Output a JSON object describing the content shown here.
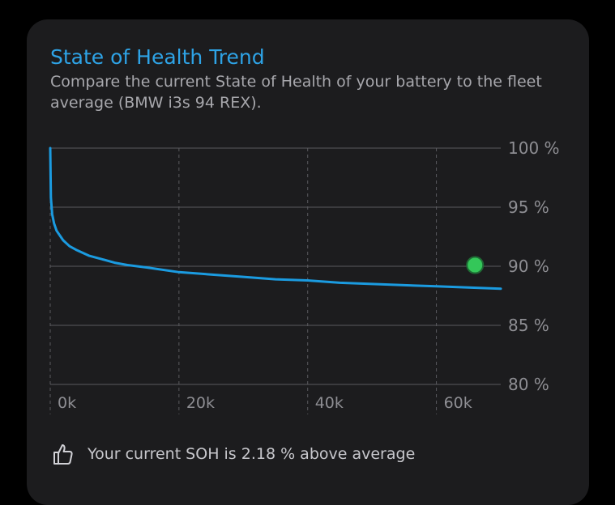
{
  "card": {
    "title": "State of Health Trend",
    "subtitle": "Compare the current State of Health of your battery to the fleet average (BMW i3s 94 REX).",
    "footer_icon": "thumbs-up-icon",
    "footer_text": "Your current SOH is 2.18 % above average"
  },
  "colors": {
    "background": "#000000",
    "card": "#1c1c1e",
    "title": "#2ea3e6",
    "line": "#1b9be0",
    "marker": "#34c759",
    "grid": "#5a5a5e",
    "tick": "#8e8e93"
  },
  "chart_data": {
    "type": "line",
    "title": "",
    "xlabel": "",
    "ylabel": "",
    "xlim": [
      0,
      70000
    ],
    "ylim": [
      80,
      100
    ],
    "x_ticks": [
      0,
      20000,
      40000,
      60000
    ],
    "x_tick_labels": [
      "0k",
      "20k",
      "40k",
      "60k"
    ],
    "y_ticks": [
      100,
      95,
      90,
      85,
      80
    ],
    "y_tick_labels": [
      "100 %",
      "95 %",
      "90 %",
      "85 %",
      "80 %"
    ],
    "y_axis_position": "right",
    "grid": true,
    "series": [
      {
        "x": [
          0,
          100,
          300,
          600,
          1000,
          2000,
          3000,
          4000,
          6000,
          8000,
          10000,
          12000,
          15000,
          20000,
          25000,
          30000,
          35000,
          40000,
          45000,
          50000,
          55000,
          60000,
          65000,
          70000
        ],
        "values": [
          100,
          95.8,
          94.4,
          93.6,
          93.0,
          92.2,
          91.7,
          91.4,
          90.9,
          90.6,
          90.3,
          90.1,
          89.9,
          89.5,
          89.3,
          89.1,
          88.9,
          88.8,
          88.6,
          88.5,
          88.4,
          88.3,
          88.2,
          88.1
        ]
      }
    ],
    "current_value": {
      "x": 66000,
      "y": 90.1
    }
  }
}
